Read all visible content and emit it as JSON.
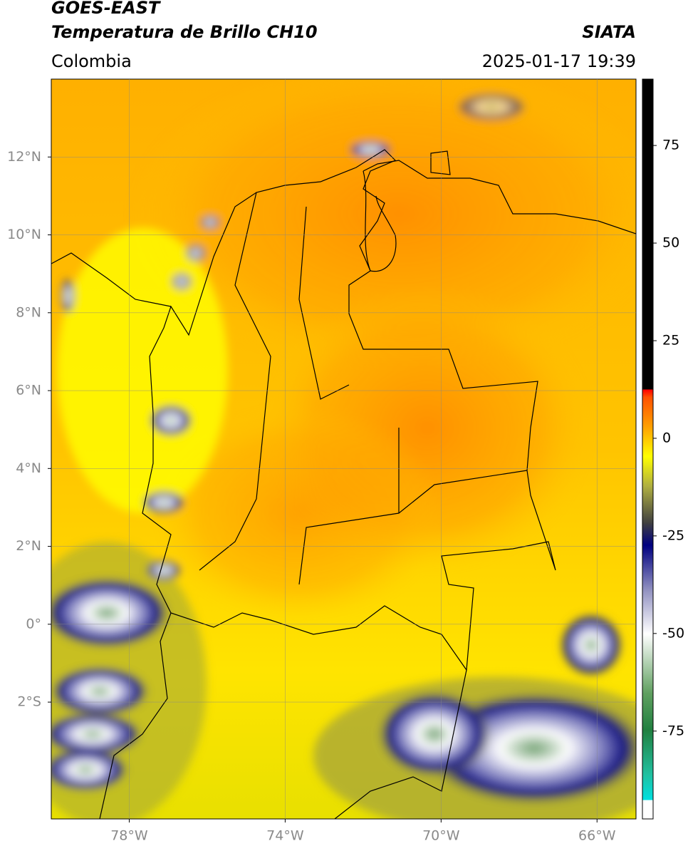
{
  "header": {
    "title": "GOES-EAST",
    "subtitle": "Temperatura de Brillo CH10",
    "region": "Colombia",
    "source": "SIATA",
    "timestamp": "2025-01-17 19:39"
  },
  "map": {
    "lonlim": [
      -80,
      -65
    ],
    "latlim": [
      -5,
      14
    ],
    "lon_ticks": [
      {
        "value": -78,
        "label": "78°W"
      },
      {
        "value": -74,
        "label": "74°W"
      },
      {
        "value": -70,
        "label": "70°W"
      },
      {
        "value": -66,
        "label": "66°W"
      }
    ],
    "lat_ticks": [
      {
        "value": 12,
        "label": "12°N"
      },
      {
        "value": 10,
        "label": "10°N"
      },
      {
        "value": 8,
        "label": "8°N"
      },
      {
        "value": 6,
        "label": "6°N"
      },
      {
        "value": 4,
        "label": "4°N"
      },
      {
        "value": 2,
        "label": "2°N"
      },
      {
        "value": 0,
        "label": "0°"
      },
      {
        "value": -2,
        "label": "2°S"
      }
    ]
  },
  "colorbar": {
    "lim": [
      -97.5,
      92
    ],
    "ticks": [
      75,
      50,
      25,
      0,
      -25,
      -50,
      -75
    ]
  }
}
